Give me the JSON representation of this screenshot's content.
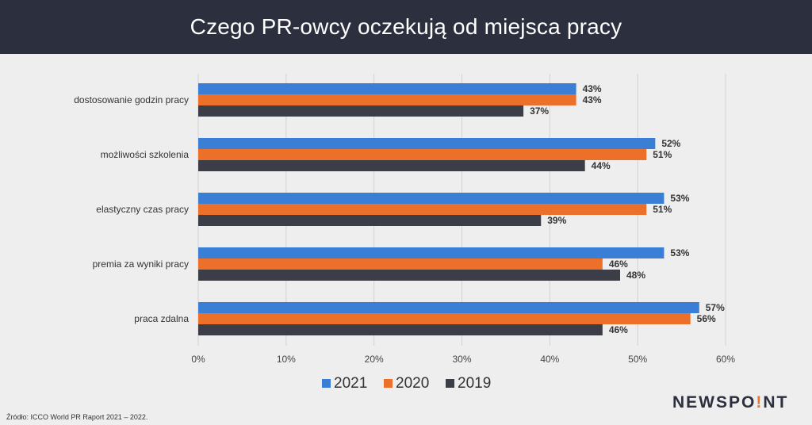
{
  "title": "Czego PR-owcy oczekują od miejsca pracy",
  "source": "Źródło: ICCO World PR Raport 2021 – 2022.",
  "brand": {
    "before": "NEWSPO",
    "dot": "!",
    "after": "NT"
  },
  "colors": {
    "2021": "#3a7fd5",
    "2020": "#ec6f2a",
    "2019": "#3b3e46",
    "header": "#2b2f3e"
  },
  "chart_data": {
    "type": "bar",
    "orientation": "horizontal",
    "categories": [
      "dostosowanie godzin pracy",
      "możliwości szkolenia",
      "elastyczny czas pracy",
      "premia za wyniki pracy",
      "praca zdalna"
    ],
    "series": [
      {
        "name": "2021",
        "values": [
          43,
          52,
          53,
          53,
          57
        ],
        "color": "#3a7fd5"
      },
      {
        "name": "2020",
        "values": [
          43,
          51,
          51,
          46,
          56
        ],
        "color": "#ec6f2a"
      },
      {
        "name": "2019",
        "values": [
          37,
          44,
          39,
          48,
          46
        ],
        "color": "#3b3e46"
      }
    ],
    "xlim": [
      0,
      60
    ],
    "xticks": [
      "0%",
      "10%",
      "20%",
      "30%",
      "40%",
      "50%",
      "60%"
    ],
    "value_suffix": "%",
    "grid": "vertical",
    "legend_position": "bottom"
  }
}
